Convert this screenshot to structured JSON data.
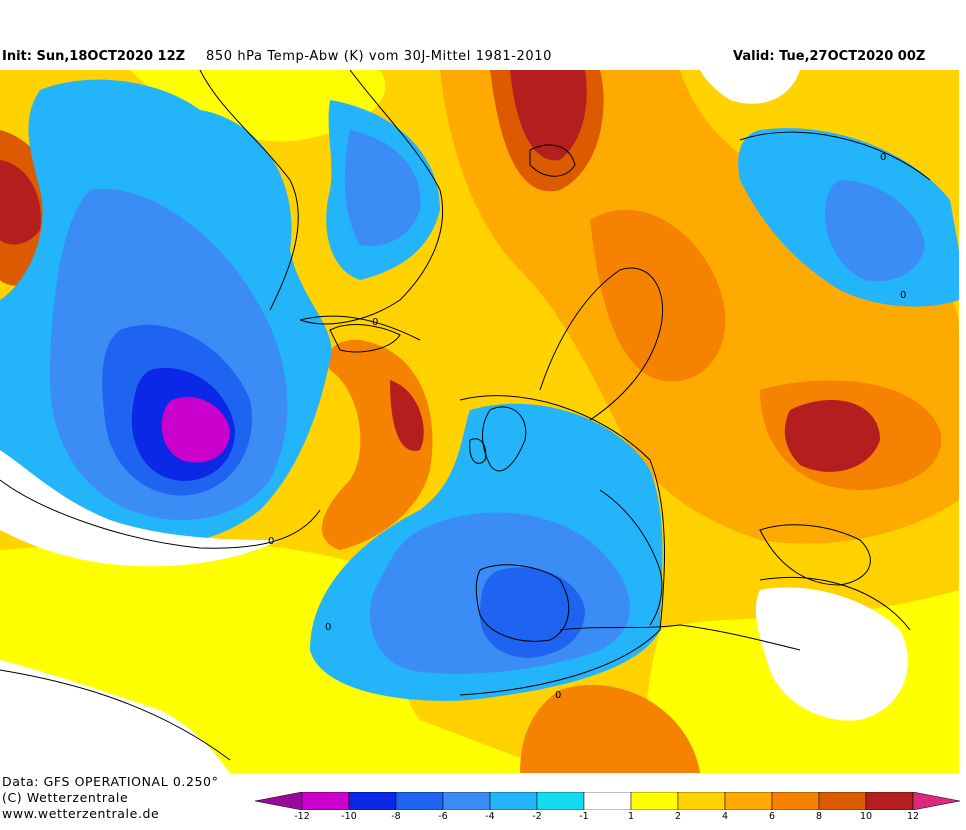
{
  "header": {
    "init": "Init: Sun,18OCT2020 12Z",
    "title": "850 hPa Temp-Abw (K) vom 30J-Mittel 1981-2010",
    "valid": "Valid: Tue,27OCT2020 00Z"
  },
  "footer": {
    "data": "Data: GFS OPERATIONAL 0.250°",
    "copyright": "(C) Wetterzentrale",
    "website": "www.wetterzentrale.de"
  },
  "map": {
    "variable": "850 hPa temperature anomaly",
    "unit": "K",
    "contour_label": "0",
    "contour_color": "#000000",
    "coastline_color": "#000000"
  },
  "legend": {
    "labels": [
      "-12",
      "-10",
      "-8",
      "-6",
      "-4",
      "-2",
      "-1",
      "1",
      "2",
      "4",
      "6",
      "8",
      "10",
      "12"
    ],
    "colors": [
      "#9a0a9a",
      "#cc00cc",
      "#0a28e6",
      "#1e64f0",
      "#3c8cf5",
      "#23b4fa",
      "#14dcf0",
      "#ffffff",
      "#ffff00",
      "#ffd200",
      "#ffaa00",
      "#f58200",
      "#dc5a00",
      "#b41e1e",
      "#dc287d"
    ]
  }
}
